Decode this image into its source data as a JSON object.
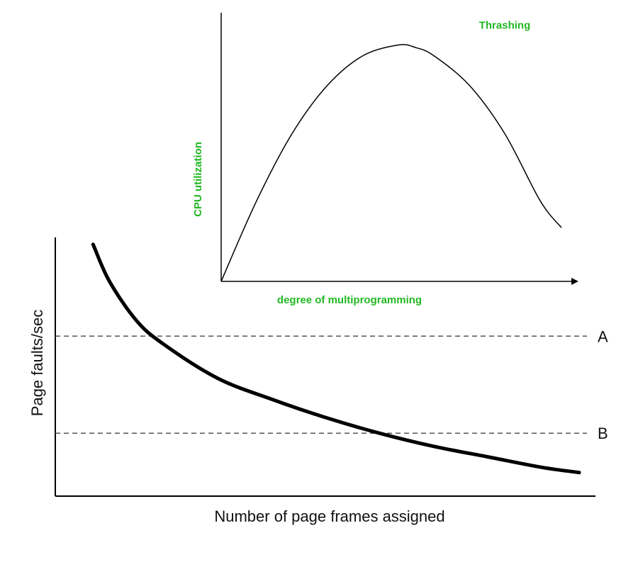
{
  "colors": {
    "background": "#ffffff",
    "curve": "#000000",
    "guide_line": "#555555",
    "top_chart_text": "#22b822",
    "bottom_chart_text": "#111111"
  },
  "chart_data": [
    {
      "type": "line",
      "title": "",
      "xlabel": "degree of multiprogramming",
      "ylabel": "CPU utilization",
      "xticks": [],
      "yticks": [],
      "xlim": [
        0,
        1.0
      ],
      "ylim": [
        0,
        1.0
      ],
      "grid": false,
      "legend": "none",
      "annotations": [
        {
          "text": "Thrashing",
          "x": 0.8,
          "y": 0.94
        }
      ],
      "series": [
        {
          "x": [
            0,
            0.1,
            0.2,
            0.3,
            0.4,
            0.5,
            0.55,
            0.6,
            0.7,
            0.8,
            0.9,
            0.96
          ],
          "y": [
            0,
            0.3,
            0.55,
            0.73,
            0.84,
            0.88,
            0.87,
            0.84,
            0.73,
            0.55,
            0.3,
            0.2
          ]
        }
      ]
    },
    {
      "type": "line",
      "title": "",
      "xlabel": "Number of page frames assigned",
      "ylabel": "Page faults/sec",
      "xticks": [],
      "yticks": [],
      "xlim": [
        0,
        1.0
      ],
      "ylim": [
        0,
        1.0
      ],
      "grid": false,
      "legend": "none",
      "reference_lines": [
        {
          "label": "A",
          "y": 0.61
        },
        {
          "label": "B",
          "y": 0.24
        }
      ],
      "series": [
        {
          "x": [
            0.07,
            0.1,
            0.15,
            0.2,
            0.3,
            0.4,
            0.5,
            0.6,
            0.7,
            0.8,
            0.9,
            0.97
          ],
          "y": [
            0.96,
            0.82,
            0.67,
            0.58,
            0.45,
            0.37,
            0.3,
            0.24,
            0.19,
            0.15,
            0.11,
            0.09
          ]
        }
      ]
    }
  ]
}
